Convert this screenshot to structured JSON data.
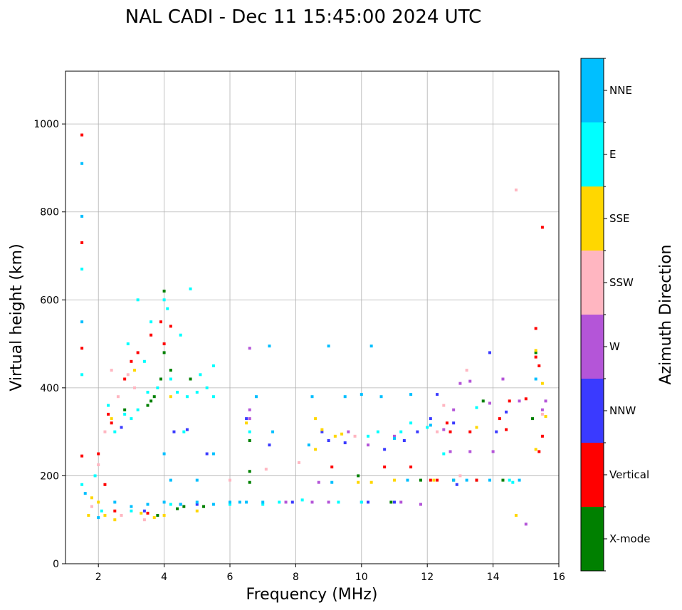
{
  "chart_data": {
    "type": "scatter",
    "title": "NAL CADI - Dec 11 15:45:00 2024 UTC",
    "xlabel": "Frequency (MHz)",
    "ylabel": "Virtual height (km)",
    "xlim": [
      1,
      16
    ],
    "ylim": [
      0,
      1120
    ],
    "xticks": [
      2,
      4,
      6,
      8,
      10,
      12,
      14,
      16
    ],
    "yticks": [
      0,
      200,
      400,
      600,
      800,
      1000
    ],
    "grid": true,
    "colorbar": {
      "label": "Azimuth Direction",
      "categories": [
        {
          "name": "X-mode",
          "color": "#008000"
        },
        {
          "name": "Vertical",
          "color": "#ff0000"
        },
        {
          "name": "NNW",
          "color": "#3a3aff"
        },
        {
          "name": "W",
          "color": "#b455d8"
        },
        {
          "name": "SSW",
          "color": "#ffb6c1"
        },
        {
          "name": "SSE",
          "color": "#ffd700"
        },
        {
          "name": "E",
          "color": "#00ffff"
        },
        {
          "name": "NNE",
          "color": "#00bfff"
        }
      ]
    },
    "series": [
      {
        "name": "X-mode",
        "color": "#008000",
        "points": [
          [
            3.6,
            370
          ],
          [
            3.7,
            380
          ],
          [
            3.9,
            420
          ],
          [
            4.0,
            480
          ],
          [
            4.0,
            620
          ],
          [
            4.2,
            440
          ],
          [
            3.5,
            360
          ],
          [
            6.6,
            280
          ],
          [
            6.6,
            210
          ],
          [
            6.6,
            185
          ],
          [
            5.2,
            130
          ],
          [
            4.6,
            130
          ],
          [
            12.8,
            190
          ],
          [
            13.5,
            190
          ],
          [
            13.7,
            370
          ],
          [
            15.3,
            480
          ],
          [
            15.2,
            330
          ],
          [
            14.3,
            190
          ],
          [
            10.9,
            140
          ],
          [
            8.5,
            140
          ],
          [
            4.8,
            420
          ],
          [
            3.8,
            110
          ],
          [
            4.4,
            125
          ],
          [
            11.8,
            190
          ],
          [
            9.9,
            200
          ],
          [
            2.8,
            350
          ]
        ]
      },
      {
        "name": "Vertical",
        "color": "#ff0000",
        "points": [
          [
            1.5,
            975
          ],
          [
            1.5,
            730
          ],
          [
            1.5,
            490
          ],
          [
            1.5,
            245
          ],
          [
            2.3,
            340
          ],
          [
            2.4,
            320
          ],
          [
            3.0,
            460
          ],
          [
            3.2,
            480
          ],
          [
            3.6,
            520
          ],
          [
            3.9,
            550
          ],
          [
            4.2,
            540
          ],
          [
            2.0,
            250
          ],
          [
            2.2,
            180
          ],
          [
            12.3,
            190
          ],
          [
            12.6,
            320
          ],
          [
            12.7,
            300
          ],
          [
            13.3,
            300
          ],
          [
            13.5,
            190
          ],
          [
            14.5,
            370
          ],
          [
            14.2,
            330
          ],
          [
            15.0,
            375
          ],
          [
            15.5,
            765
          ],
          [
            15.4,
            450
          ],
          [
            15.3,
            535
          ],
          [
            15.3,
            470
          ],
          [
            15.5,
            290
          ],
          [
            15.4,
            255
          ],
          [
            9.1,
            220
          ],
          [
            10.7,
            220
          ],
          [
            11.5,
            220
          ],
          [
            12.1,
            190
          ],
          [
            14.4,
            305
          ],
          [
            2.5,
            120
          ],
          [
            3.5,
            115
          ],
          [
            4.0,
            500
          ],
          [
            2.8,
            420
          ]
        ]
      },
      {
        "name": "NNW",
        "color": "#3a3aff",
        "points": [
          [
            4.3,
            300
          ],
          [
            4.7,
            305
          ],
          [
            5.3,
            250
          ],
          [
            7.2,
            270
          ],
          [
            8.8,
            300
          ],
          [
            9.0,
            280
          ],
          [
            9.5,
            275
          ],
          [
            10.7,
            260
          ],
          [
            11.3,
            280
          ],
          [
            12.1,
            330
          ],
          [
            12.3,
            385
          ],
          [
            12.8,
            320
          ],
          [
            13.9,
            480
          ],
          [
            14.1,
            300
          ],
          [
            14.4,
            345
          ],
          [
            7.9,
            140
          ],
          [
            10.2,
            140
          ],
          [
            11.0,
            140
          ],
          [
            4.5,
            135
          ],
          [
            5.0,
            135
          ],
          [
            3.4,
            120
          ],
          [
            2.7,
            310
          ],
          [
            6.5,
            330
          ],
          [
            11.7,
            300
          ],
          [
            12.9,
            180
          ]
        ]
      },
      {
        "name": "W",
        "color": "#b455d8",
        "points": [
          [
            6.6,
            490
          ],
          [
            6.6,
            350
          ],
          [
            6.6,
            330
          ],
          [
            8.5,
            140
          ],
          [
            9.0,
            140
          ],
          [
            10.0,
            140
          ],
          [
            11.2,
            140
          ],
          [
            11.8,
            135
          ],
          [
            12.5,
            305
          ],
          [
            12.7,
            255
          ],
          [
            13.0,
            410
          ],
          [
            13.3,
            415
          ],
          [
            13.3,
            255
          ],
          [
            14.0,
            255
          ],
          [
            14.3,
            420
          ],
          [
            14.8,
            370
          ],
          [
            15.5,
            350
          ],
          [
            15.0,
            90
          ],
          [
            13.9,
            365
          ],
          [
            15.6,
            370
          ],
          [
            8.7,
            185
          ],
          [
            9.6,
            300
          ],
          [
            11.0,
            290
          ],
          [
            7.7,
            140
          ],
          [
            12.8,
            350
          ],
          [
            10.2,
            270
          ]
        ]
      },
      {
        "name": "SSW",
        "color": "#ffb6c1",
        "points": [
          [
            2.2,
            300
          ],
          [
            2.4,
            440
          ],
          [
            2.9,
            430
          ],
          [
            3.1,
            400
          ],
          [
            2.6,
            380
          ],
          [
            2.0,
            225
          ],
          [
            14.7,
            850
          ],
          [
            13.2,
            440
          ],
          [
            13.0,
            200
          ],
          [
            8.1,
            230
          ],
          [
            7.1,
            215
          ],
          [
            6.0,
            190
          ],
          [
            3.4,
            100
          ],
          [
            2.7,
            110
          ],
          [
            15.5,
            340
          ],
          [
            12.5,
            360
          ],
          [
            9.8,
            290
          ],
          [
            1.8,
            130
          ],
          [
            12.3,
            300
          ]
        ]
      },
      {
        "name": "SSE",
        "color": "#ffd700",
        "points": [
          [
            1.8,
            150
          ],
          [
            2.0,
            140
          ],
          [
            2.2,
            110
          ],
          [
            2.5,
            100
          ],
          [
            3.3,
            115
          ],
          [
            3.7,
            105
          ],
          [
            4.0,
            110
          ],
          [
            1.7,
            110
          ],
          [
            8.6,
            330
          ],
          [
            8.8,
            305
          ],
          [
            9.2,
            290
          ],
          [
            9.4,
            295
          ],
          [
            10.3,
            185
          ],
          [
            11.0,
            190
          ],
          [
            12.2,
            190
          ],
          [
            13.5,
            310
          ],
          [
            15.3,
            485
          ],
          [
            15.5,
            410
          ],
          [
            15.6,
            335
          ],
          [
            15.3,
            260
          ],
          [
            14.7,
            110
          ],
          [
            2.4,
            330
          ],
          [
            3.1,
            440
          ],
          [
            4.2,
            380
          ],
          [
            5.0,
            120
          ],
          [
            6.5,
            320
          ],
          [
            8.6,
            260
          ],
          [
            9.9,
            185
          ]
        ]
      },
      {
        "name": "E",
        "color": "#00ffff",
        "points": [
          [
            1.5,
            670
          ],
          [
            1.5,
            430
          ],
          [
            1.5,
            180
          ],
          [
            2.5,
            300
          ],
          [
            2.8,
            340
          ],
          [
            3.0,
            330
          ],
          [
            3.2,
            350
          ],
          [
            3.5,
            390
          ],
          [
            3.8,
            400
          ],
          [
            4.0,
            600
          ],
          [
            4.1,
            580
          ],
          [
            4.4,
            390
          ],
          [
            4.7,
            380
          ],
          [
            5.0,
            390
          ],
          [
            5.3,
            400
          ],
          [
            5.5,
            380
          ],
          [
            4.8,
            625
          ],
          [
            5.5,
            450
          ],
          [
            4.2,
            420
          ],
          [
            3.2,
            600
          ],
          [
            2.9,
            500
          ],
          [
            3.4,
            460
          ],
          [
            4.5,
            520
          ],
          [
            7.0,
            135
          ],
          [
            7.5,
            140
          ],
          [
            9.3,
            140
          ],
          [
            10.0,
            140
          ],
          [
            10.5,
            300
          ],
          [
            11.2,
            300
          ],
          [
            12.0,
            310
          ],
          [
            12.5,
            250
          ],
          [
            14.5,
            190
          ],
          [
            6.6,
            300
          ],
          [
            5.1,
            430
          ],
          [
            3.6,
            550
          ],
          [
            2.3,
            360
          ],
          [
            1.9,
            200
          ],
          [
            10.2,
            290
          ],
          [
            13.5,
            355
          ],
          [
            4.6,
            300
          ],
          [
            2.1,
            120
          ],
          [
            3.0,
            120
          ],
          [
            4.2,
            135
          ],
          [
            6.0,
            135
          ],
          [
            8.2,
            145
          ],
          [
            11.5,
            320
          ],
          [
            14.6,
            185
          ]
        ]
      },
      {
        "name": "NNE",
        "color": "#00bfff",
        "points": [
          [
            1.5,
            910
          ],
          [
            1.5,
            550
          ],
          [
            1.5,
            790
          ],
          [
            2.5,
            140
          ],
          [
            3.0,
            130
          ],
          [
            3.5,
            135
          ],
          [
            4.0,
            140
          ],
          [
            4.5,
            135
          ],
          [
            5.0,
            140
          ],
          [
            5.5,
            135
          ],
          [
            6.0,
            140
          ],
          [
            6.5,
            140
          ],
          [
            7.0,
            140
          ],
          [
            7.2,
            495
          ],
          [
            6.8,
            380
          ],
          [
            8.5,
            380
          ],
          [
            9.0,
            495
          ],
          [
            9.5,
            380
          ],
          [
            10.0,
            385
          ],
          [
            10.3,
            495
          ],
          [
            10.6,
            380
          ],
          [
            11.5,
            385
          ],
          [
            12.1,
            315
          ],
          [
            11.4,
            190
          ],
          [
            13.9,
            190
          ],
          [
            15.3,
            420
          ],
          [
            9.1,
            185
          ],
          [
            6.3,
            140
          ],
          [
            4.2,
            190
          ],
          [
            5.0,
            190
          ],
          [
            8.4,
            270
          ],
          [
            5.5,
            250
          ],
          [
            4.0,
            250
          ],
          [
            12.8,
            190
          ],
          [
            13.2,
            190
          ],
          [
            14.8,
            190
          ],
          [
            2.0,
            105
          ],
          [
            1.6,
            160
          ],
          [
            7.3,
            300
          ],
          [
            11.0,
            285
          ]
        ]
      }
    ]
  }
}
